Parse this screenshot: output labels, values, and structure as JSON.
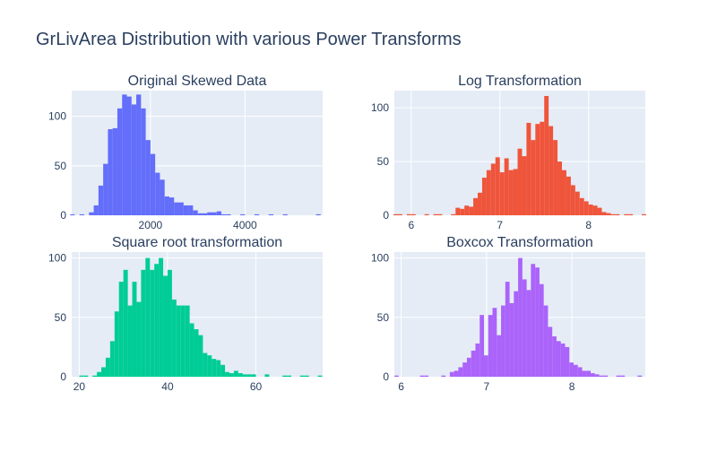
{
  "figure_title": "GrLivArea Distribution with various Power Transforms",
  "colors": {
    "background": "#ffffff",
    "plot_bg": "#e5ecf6",
    "grid": "#ffffff",
    "text": "#2a3f5f"
  },
  "chart_data": [
    {
      "type": "bar",
      "title": "Original Skewed Data",
      "color": "#636efa",
      "xlim": [
        334,
        5642
      ],
      "ylim": [
        0,
        126
      ],
      "xticks": [
        2000,
        4000
      ],
      "xtick_labels": [
        "2000",
        "4000"
      ],
      "yticks": [
        0,
        50,
        100
      ],
      "ytick_labels": [
        "0",
        "50",
        "100"
      ],
      "bin_width": 100,
      "x": [
        350,
        450,
        550,
        650,
        750,
        850,
        950,
        1050,
        1150,
        1250,
        1350,
        1450,
        1550,
        1650,
        1750,
        1850,
        1950,
        2050,
        2150,
        2250,
        2350,
        2450,
        2550,
        2650,
        2750,
        2850,
        2950,
        3050,
        3150,
        3250,
        3350,
        3450,
        3550,
        3650,
        3750,
        3850,
        3950,
        4050,
        4150,
        4250,
        4350,
        4450,
        4550,
        4650,
        4750,
        4850,
        4950,
        5050,
        5150,
        5250,
        5350,
        5450,
        5550
      ],
      "values": [
        1,
        0,
        1,
        0,
        3,
        10,
        30,
        52,
        87,
        88,
        108,
        122,
        120,
        112,
        122,
        108,
        76,
        62,
        43,
        36,
        19,
        18,
        13,
        13,
        10,
        10,
        5,
        2,
        2,
        3,
        3,
        4,
        1,
        1,
        0,
        0,
        1,
        0,
        0,
        1,
        0,
        0,
        1,
        0,
        0,
        1,
        0,
        0,
        0,
        0,
        0,
        0,
        1
      ]
    },
    {
      "type": "bar",
      "title": "Log Transformation",
      "color": "#ef553b",
      "xlim": [
        5.81,
        8.64
      ],
      "ylim": [
        0,
        116
      ],
      "xticks": [
        6,
        7,
        8
      ],
      "xtick_labels": [
        "6",
        "7",
        "8"
      ],
      "yticks": [
        0,
        50,
        100
      ],
      "ytick_labels": [
        "0",
        "50",
        "100"
      ],
      "bin_width": 0.05,
      "x": [
        5.825,
        5.875,
        5.925,
        5.975,
        6.025,
        6.075,
        6.125,
        6.175,
        6.225,
        6.275,
        6.325,
        6.375,
        6.425,
        6.475,
        6.525,
        6.575,
        6.625,
        6.675,
        6.725,
        6.775,
        6.825,
        6.875,
        6.925,
        6.975,
        7.025,
        7.075,
        7.125,
        7.175,
        7.225,
        7.275,
        7.325,
        7.375,
        7.425,
        7.475,
        7.525,
        7.575,
        7.625,
        7.675,
        7.725,
        7.775,
        7.825,
        7.875,
        7.925,
        7.975,
        8.025,
        8.075,
        8.125,
        8.175,
        8.225,
        8.275,
        8.325,
        8.375,
        8.425,
        8.475,
        8.525,
        8.575,
        8.625
      ],
      "values": [
        1,
        1,
        0,
        1,
        1,
        0,
        0,
        1,
        0,
        1,
        1,
        0,
        0,
        1,
        7,
        6,
        9,
        8,
        16,
        21,
        35,
        42,
        48,
        54,
        40,
        53,
        42,
        43,
        62,
        55,
        86,
        70,
        85,
        87,
        111,
        83,
        70,
        50,
        42,
        36,
        28,
        22,
        16,
        13,
        10,
        9,
        7,
        3,
        2,
        1,
        1,
        0,
        1,
        1,
        0,
        0,
        1
      ]
    },
    {
      "type": "bar",
      "title": "Square root transformation",
      "color": "#00cc96",
      "xlim": [
        18.3,
        75.1
      ],
      "ylim": [
        0,
        105
      ],
      "xticks": [
        20,
        40,
        60
      ],
      "xtick_labels": [
        "20",
        "40",
        "60"
      ],
      "yticks": [
        0,
        50,
        100
      ],
      "ytick_labels": [
        "0",
        "50",
        "100"
      ],
      "bin_width": 1,
      "x": [
        18.5,
        19.5,
        20.5,
        21.5,
        22.5,
        23.5,
        24.5,
        25.5,
        26.5,
        27.5,
        28.5,
        29.5,
        30.5,
        31.5,
        32.5,
        33.5,
        34.5,
        35.5,
        36.5,
        37.5,
        38.5,
        39.5,
        40.5,
        41.5,
        42.5,
        43.5,
        44.5,
        45.5,
        46.5,
        47.5,
        48.5,
        49.5,
        50.5,
        51.5,
        52.5,
        53.5,
        54.5,
        55.5,
        56.5,
        57.5,
        58.5,
        59.5,
        60.5,
        61.5,
        62.5,
        63.5,
        64.5,
        65.5,
        66.5,
        67.5,
        68.5,
        69.5,
        70.5,
        71.5,
        72.5,
        73.5,
        74.5
      ],
      "values": [
        0,
        0,
        1,
        1,
        0,
        1,
        4,
        8,
        16,
        30,
        55,
        80,
        90,
        60,
        80,
        63,
        90,
        100,
        90,
        95,
        100,
        85,
        90,
        65,
        60,
        60,
        60,
        45,
        40,
        35,
        20,
        18,
        15,
        14,
        10,
        4,
        3,
        5,
        3,
        2,
        2,
        2,
        0,
        0,
        2,
        0,
        0,
        0,
        1,
        1,
        0,
        0,
        1,
        1,
        0,
        0,
        1
      ]
    },
    {
      "type": "bar",
      "title": "Boxcox Transformation",
      "color": "#ab63fa",
      "xlim": [
        5.92,
        8.86
      ],
      "ylim": [
        0,
        105
      ],
      "xticks": [
        6,
        7,
        8
      ],
      "xtick_labels": [
        "6",
        "7",
        "8"
      ],
      "yticks": [
        0,
        50,
        100
      ],
      "ytick_labels": [
        "0",
        "50",
        "100"
      ],
      "bin_width": 0.05,
      "x": [
        5.945,
        5.995,
        6.045,
        6.095,
        6.145,
        6.195,
        6.245,
        6.295,
        6.345,
        6.395,
        6.445,
        6.495,
        6.545,
        6.595,
        6.645,
        6.695,
        6.745,
        6.795,
        6.845,
        6.895,
        6.945,
        6.995,
        7.045,
        7.095,
        7.145,
        7.195,
        7.245,
        7.295,
        7.345,
        7.395,
        7.445,
        7.495,
        7.545,
        7.595,
        7.645,
        7.695,
        7.745,
        7.795,
        7.845,
        7.895,
        7.945,
        7.995,
        8.045,
        8.095,
        8.145,
        8.195,
        8.245,
        8.295,
        8.345,
        8.395,
        8.445,
        8.495,
        8.545,
        8.595,
        8.645,
        8.695,
        8.745,
        8.795,
        8.845
      ],
      "values": [
        1,
        0,
        0,
        0,
        0,
        0,
        1,
        1,
        0,
        0,
        0,
        1,
        0,
        4,
        5,
        8,
        12,
        16,
        22,
        28,
        52,
        18,
        52,
        58,
        35,
        60,
        80,
        62,
        72,
        100,
        82,
        73,
        95,
        92,
        78,
        60,
        42,
        34,
        30,
        28,
        25,
        12,
        10,
        8,
        5,
        5,
        3,
        2,
        1,
        1,
        0,
        0,
        1,
        1,
        0,
        0,
        0,
        1,
        0
      ]
    }
  ]
}
